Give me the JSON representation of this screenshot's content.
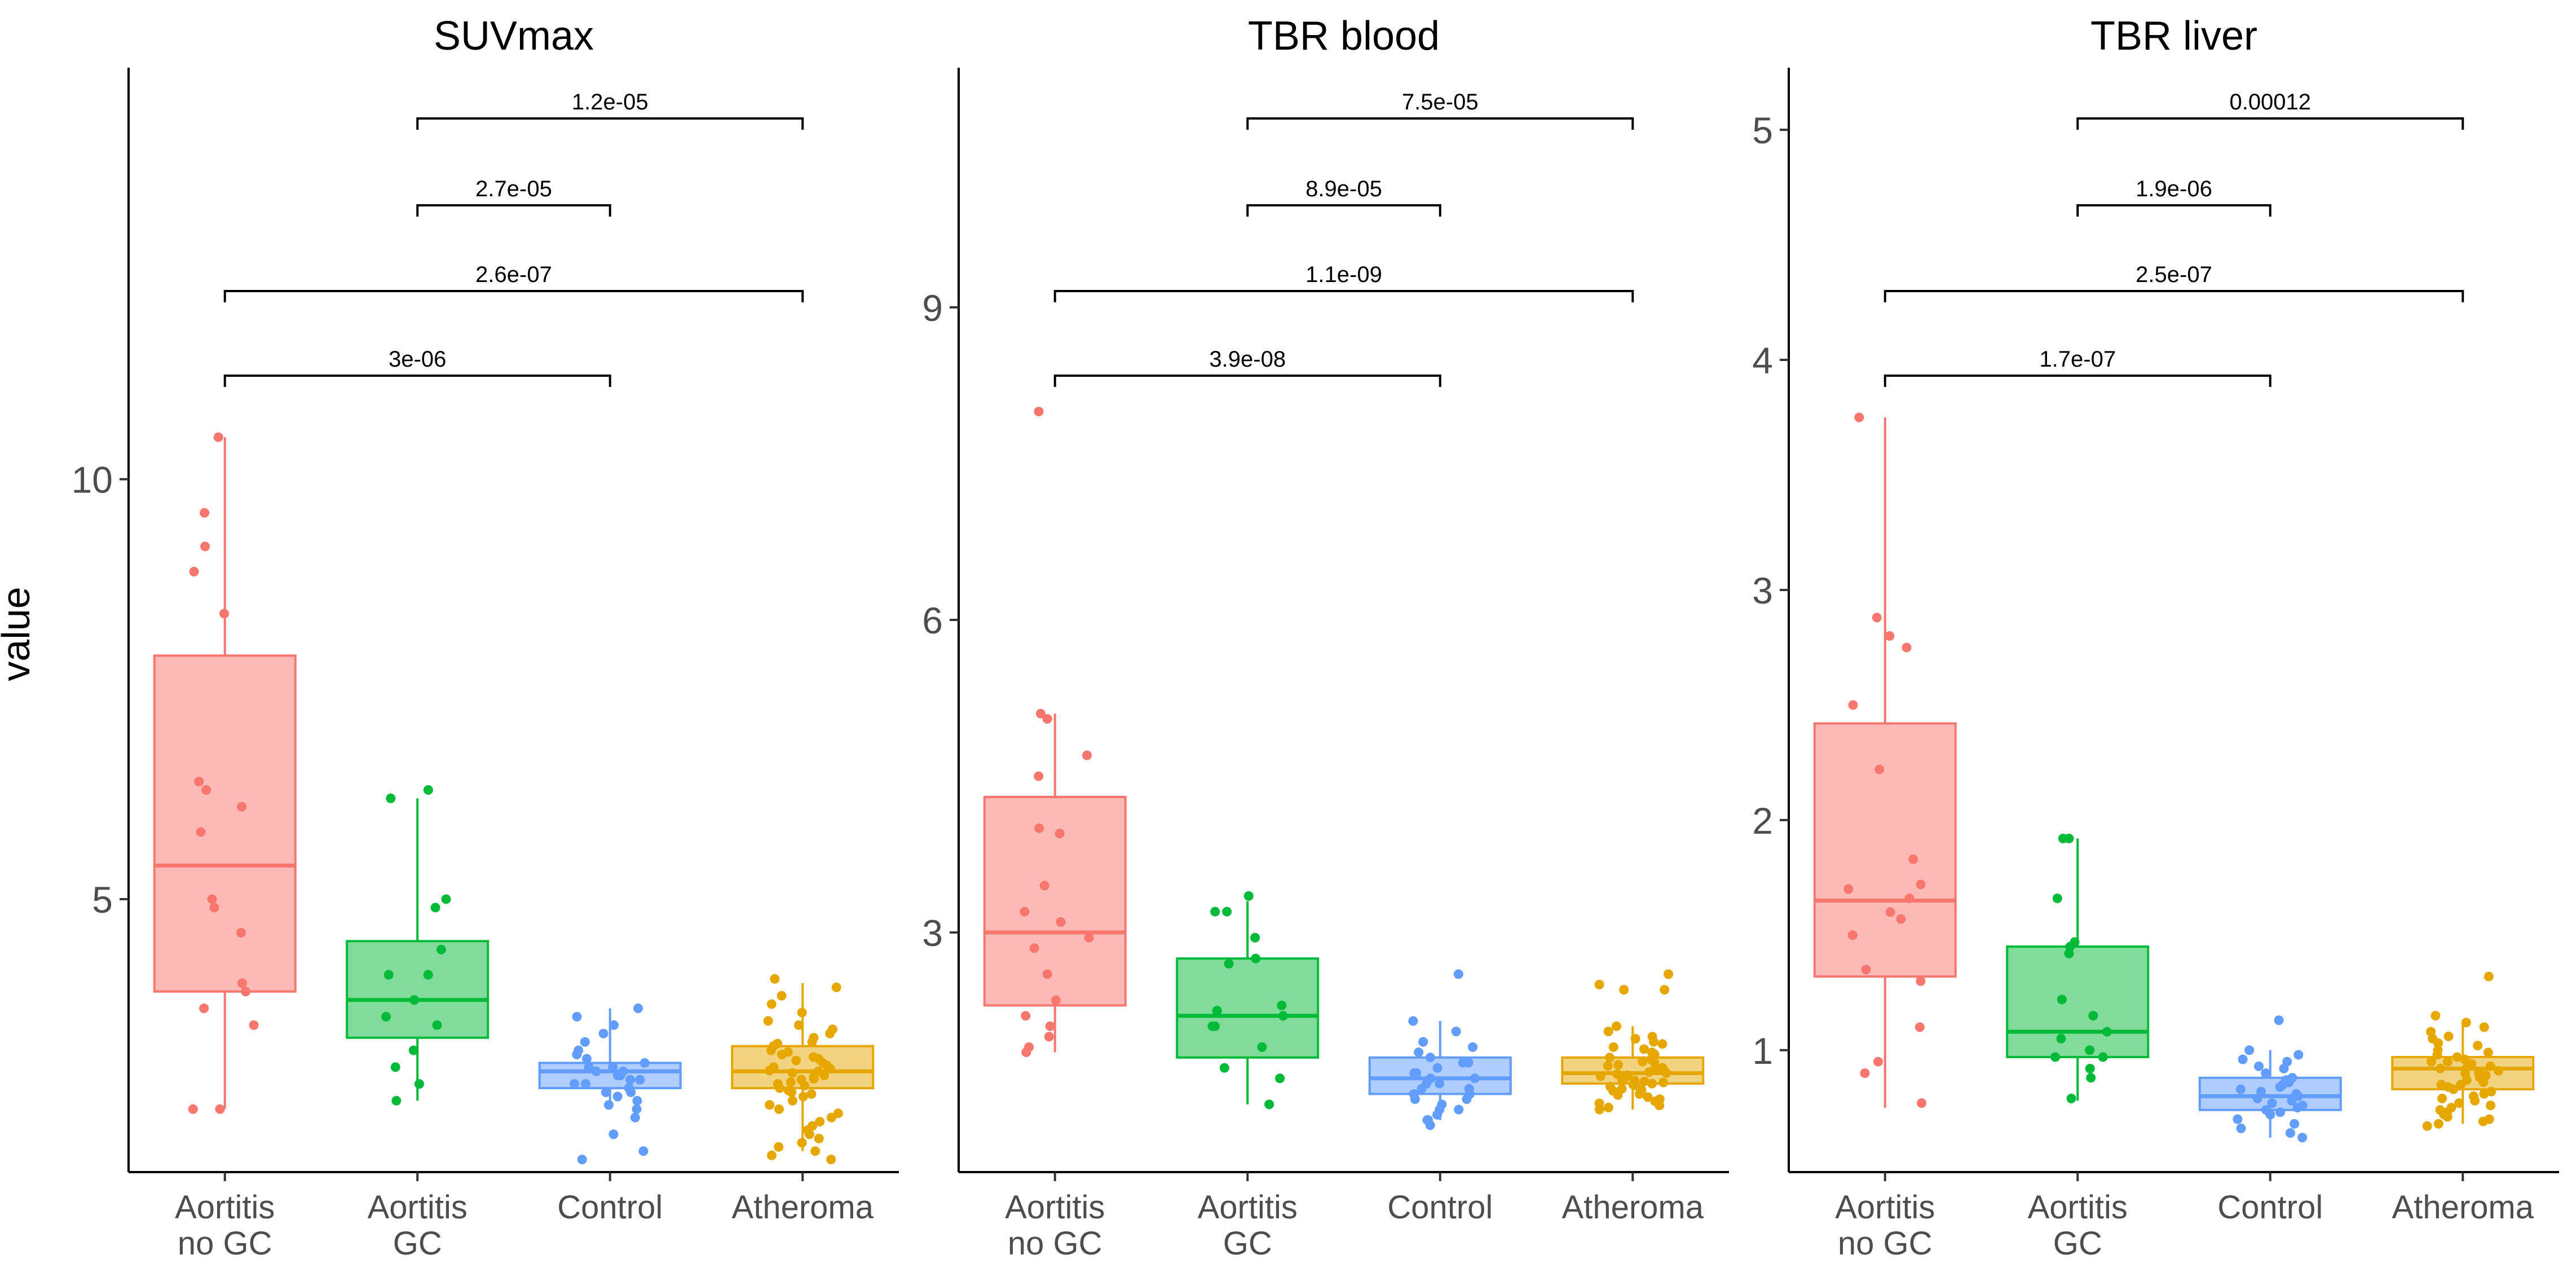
{
  "figure": {
    "ylabel": "value",
    "categories": [
      "Aortitis\nno GC",
      "Aortitis\nGC",
      "Control",
      "Atheroma"
    ],
    "colors": [
      "#F8766D",
      "#00BA38",
      "#619CFF",
      "#E6A800"
    ]
  },
  "chart_data": [
    {
      "type": "box",
      "title": "SUVmax",
      "ylabel": "value",
      "ylim": [
        1.75,
        14.9
      ],
      "yticks": [
        5,
        10
      ],
      "categories": [
        "Aortitis\nno GC",
        "Aortitis\nGC",
        "Control",
        "Atheroma"
      ],
      "boxes": [
        {
          "q1": 3.9,
          "median": 5.4,
          "q3": 7.9,
          "whisker_low": 2.5,
          "whisker_high": 10.5
        },
        {
          "q1": 3.35,
          "median": 3.8,
          "q3": 4.5,
          "whisker_low": 2.6,
          "whisker_high": 6.2
        },
        {
          "q1": 2.75,
          "median": 2.95,
          "q3": 3.05,
          "whisker_low": 2.5,
          "whisker_high": 3.7
        },
        {
          "q1": 2.75,
          "median": 2.95,
          "q3": 3.25,
          "whisker_low": 2.0,
          "whisker_high": 4.0
        }
      ],
      "points": [
        [
          10.5,
          9.6,
          9.2,
          8.9,
          8.4,
          6.4,
          6.3,
          6.1,
          5.8,
          5.0,
          4.9,
          4.6,
          4.0,
          3.9,
          3.7,
          3.5,
          2.5,
          2.5
        ],
        [
          6.3,
          6.2,
          5.0,
          4.9,
          4.4,
          4.1,
          4.1,
          3.8,
          3.6,
          3.5,
          3.2,
          3.0,
          2.8,
          2.6
        ],
        [
          3.7,
          3.6,
          3.5,
          3.4,
          3.3,
          3.2,
          3.15,
          3.1,
          3.05,
          3.0,
          3.0,
          2.95,
          2.95,
          2.9,
          2.9,
          2.85,
          2.85,
          2.8,
          2.8,
          2.75,
          2.7,
          2.7,
          2.65,
          2.6,
          2.55,
          2.5,
          2.4,
          2.2,
          2.0,
          1.9
        ],
        [
          4.05,
          3.95,
          3.85,
          3.75,
          3.65,
          3.55,
          3.5,
          3.45,
          3.4,
          3.35,
          3.3,
          3.28,
          3.25,
          3.2,
          3.18,
          3.15,
          3.12,
          3.1,
          3.08,
          3.05,
          3.02,
          3.0,
          2.98,
          2.96,
          2.95,
          2.93,
          2.9,
          2.88,
          2.86,
          2.85,
          2.82,
          2.8,
          2.78,
          2.75,
          2.72,
          2.7,
          2.68,
          2.65,
          2.6,
          2.55,
          2.5,
          2.45,
          2.4,
          2.35,
          2.3,
          2.25,
          2.2,
          2.15,
          2.1,
          2.05,
          2.0,
          1.95,
          1.9
        ]
      ],
      "comparisons": [
        {
          "from": 2,
          "to": 4,
          "p": "1.2e-05"
        },
        {
          "from": 2,
          "to": 3,
          "p": "2.7e-05"
        },
        {
          "from": 1,
          "to": 4,
          "p": "2.6e-07"
        },
        {
          "from": 1,
          "to": 3,
          "p": "3e-06"
        }
      ]
    },
    {
      "type": "box",
      "title": "TBR blood",
      "ylabel": "value",
      "ylim": [
        0.7,
        11.3
      ],
      "yticks": [
        3,
        6,
        9
      ],
      "categories": [
        "Aortitis\nno GC",
        "Aortitis\nGC",
        "Control",
        "Atheroma"
      ],
      "boxes": [
        {
          "q1": 2.3,
          "median": 3.0,
          "q3": 4.3,
          "whisker_low": 1.85,
          "whisker_high": 5.1
        },
        {
          "q1": 1.8,
          "median": 2.2,
          "q3": 2.75,
          "whisker_low": 1.35,
          "whisker_high": 3.3
        },
        {
          "q1": 1.45,
          "median": 1.6,
          "q3": 1.8,
          "whisker_low": 1.2,
          "whisker_high": 2.15
        },
        {
          "q1": 1.55,
          "median": 1.65,
          "q3": 1.8,
          "whisker_low": 1.3,
          "whisker_high": 2.1
        }
      ],
      "points": [
        [
          8.0,
          5.1,
          5.05,
          4.7,
          4.5,
          4.0,
          3.95,
          3.45,
          3.2,
          3.1,
          2.95,
          2.85,
          2.6,
          2.35,
          2.2,
          2.1,
          2.0,
          1.9,
          1.85
        ],
        [
          3.35,
          3.2,
          3.2,
          2.95,
          2.75,
          2.7,
          2.3,
          2.25,
          2.2,
          2.1,
          2.1,
          1.9,
          1.7,
          1.6,
          1.35
        ],
        [
          2.6,
          2.15,
          2.05,
          1.95,
          1.9,
          1.85,
          1.8,
          1.75,
          1.75,
          1.7,
          1.65,
          1.65,
          1.6,
          1.6,
          1.55,
          1.55,
          1.5,
          1.5,
          1.45,
          1.45,
          1.4,
          1.4,
          1.35,
          1.3,
          1.3,
          1.25,
          1.2,
          1.2,
          1.15
        ],
        [
          2.6,
          2.5,
          2.45,
          2.45,
          2.1,
          2.05,
          2.0,
          1.98,
          1.95,
          1.93,
          1.9,
          1.88,
          1.85,
          1.83,
          1.8,
          1.78,
          1.76,
          1.75,
          1.73,
          1.72,
          1.7,
          1.69,
          1.68,
          1.67,
          1.66,
          1.65,
          1.64,
          1.63,
          1.62,
          1.6,
          1.59,
          1.58,
          1.57,
          1.56,
          1.55,
          1.54,
          1.53,
          1.52,
          1.5,
          1.49,
          1.48,
          1.47,
          1.45,
          1.44,
          1.42,
          1.4,
          1.38,
          1.36,
          1.34,
          1.32,
          1.3
        ]
      ],
      "comparisons": [
        {
          "from": 2,
          "to": 4,
          "p": "7.5e-05"
        },
        {
          "from": 2,
          "to": 3,
          "p": "8.9e-05"
        },
        {
          "from": 1,
          "to": 4,
          "p": "1.1e-09"
        },
        {
          "from": 1,
          "to": 3,
          "p": "3.9e-08"
        }
      ]
    },
    {
      "type": "box",
      "title": "TBR liver",
      "ylabel": "value",
      "ylim": [
        0.47,
        5.27
      ],
      "yticks": [
        1,
        2,
        3,
        4,
        5
      ],
      "categories": [
        "Aortitis\nno GC",
        "Aortitis\nGC",
        "Control",
        "Atheroma"
      ],
      "boxes": [
        {
          "q1": 1.32,
          "median": 1.65,
          "q3": 2.42,
          "whisker_low": 0.75,
          "whisker_high": 3.75
        },
        {
          "q1": 0.97,
          "median": 1.08,
          "q3": 1.45,
          "whisker_low": 0.78,
          "whisker_high": 1.92
        },
        {
          "q1": 0.74,
          "median": 0.8,
          "q3": 0.88,
          "whisker_low": 0.62,
          "whisker_high": 1.0
        },
        {
          "q1": 0.83,
          "median": 0.92,
          "q3": 0.97,
          "whisker_low": 0.68,
          "whisker_high": 1.12
        }
      ],
      "points": [
        [
          3.75,
          2.88,
          2.8,
          2.75,
          2.5,
          2.22,
          1.83,
          1.72,
          1.7,
          1.66,
          1.6,
          1.57,
          1.5,
          1.35,
          1.3,
          1.1,
          0.95,
          0.9,
          0.77
        ],
        [
          1.92,
          1.92,
          1.66,
          1.47,
          1.45,
          1.42,
          1.22,
          1.15,
          1.08,
          1.05,
          1.0,
          0.97,
          0.97,
          0.92,
          0.88,
          0.79
        ],
        [
          1.13,
          1.0,
          0.98,
          0.96,
          0.95,
          0.93,
          0.92,
          0.9,
          0.88,
          0.87,
          0.86,
          0.85,
          0.84,
          0.83,
          0.82,
          0.81,
          0.8,
          0.79,
          0.78,
          0.77,
          0.76,
          0.75,
          0.74,
          0.73,
          0.72,
          0.7,
          0.68,
          0.66,
          0.64,
          0.62
        ],
        [
          1.32,
          1.15,
          1.12,
          1.1,
          1.08,
          1.06,
          1.05,
          1.03,
          1.02,
          1.0,
          0.99,
          0.98,
          0.97,
          0.96,
          0.95,
          0.95,
          0.94,
          0.93,
          0.92,
          0.92,
          0.91,
          0.9,
          0.9,
          0.89,
          0.88,
          0.87,
          0.86,
          0.85,
          0.85,
          0.84,
          0.83,
          0.82,
          0.81,
          0.8,
          0.79,
          0.78,
          0.77,
          0.76,
          0.75,
          0.74,
          0.73,
          0.72,
          0.71,
          0.7,
          0.69,
          0.68,
          0.67
        ]
      ],
      "comparisons": [
        {
          "from": 2,
          "to": 4,
          "p": "0.00012"
        },
        {
          "from": 2,
          "to": 3,
          "p": "1.9e-06"
        },
        {
          "from": 1,
          "to": 4,
          "p": "2.5e-07"
        },
        {
          "from": 1,
          "to": 3,
          "p": "1.7e-07"
        }
      ]
    }
  ]
}
